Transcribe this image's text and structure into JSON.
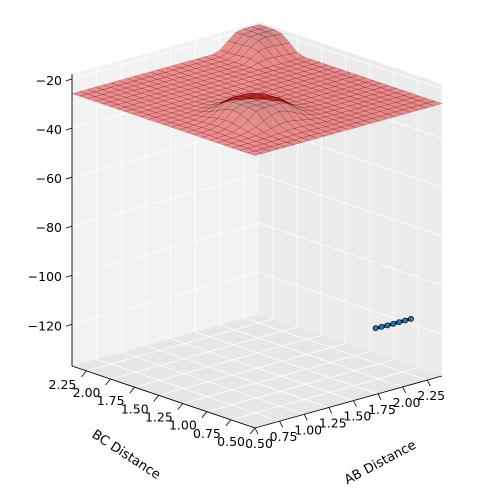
{
  "chart_data": {
    "type": "surface3d",
    "title": "",
    "xlabel": "AB Distance",
    "ylabel": "BC Distance",
    "zlabel": "",
    "xlim": [
      0.5,
      2.4
    ],
    "ylim": [
      0.5,
      2.4
    ],
    "zlim": [
      -137,
      -18
    ],
    "x_ticks": [
      "0.50",
      "0.75",
      "1.00",
      "1.25",
      "1.50",
      "1.75",
      "2.00",
      "2.25"
    ],
    "y_ticks": [
      "0.50",
      "0.75",
      "1.00",
      "1.25",
      "1.50",
      "1.75",
      "2.00",
      "2.25"
    ],
    "z_ticks": [
      "−120",
      "−100",
      "−80",
      "−60",
      "−40",
      "−20"
    ],
    "surface_colormap": "jet",
    "contour_colormap": "viridis",
    "grid": true,
    "trajectory": {
      "color": "#000000",
      "points": [
        {
          "x": 2.32,
          "y": 0.74,
          "z": -116
        },
        {
          "x": 2.26,
          "y": 0.74,
          "z": -116
        },
        {
          "x": 2.2,
          "y": 0.74,
          "z": -116
        },
        {
          "x": 2.14,
          "y": 0.74,
          "z": -116
        },
        {
          "x": 2.08,
          "y": 0.74,
          "z": -116
        },
        {
          "x": 2.02,
          "y": 0.74,
          "z": -115.9
        },
        {
          "x": 1.96,
          "y": 0.74,
          "z": -115.8
        }
      ]
    }
  }
}
